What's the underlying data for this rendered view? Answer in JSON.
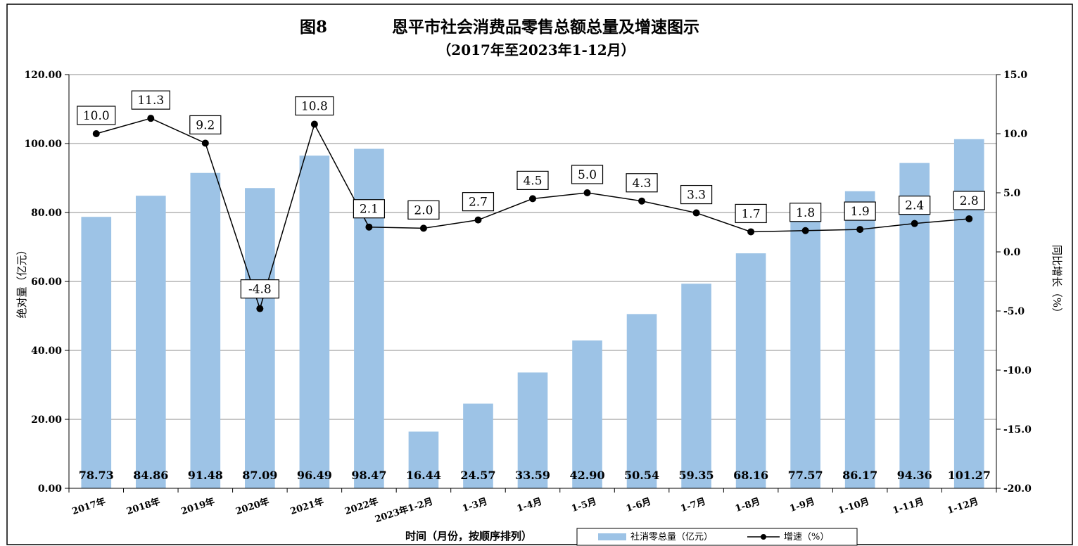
{
  "chart_data": {
    "type": "bar",
    "title": "图8　　　　恩平市社会消费品零售总额总量及增速图示",
    "subtitle": "（2017年至2023年1-12月）",
    "xlabel": "时间（月份，按顺序排列）",
    "ylabel": "绝对量（亿元）",
    "y2label": "同比增长（%）",
    "ylim": [
      0,
      120
    ],
    "y2lim": [
      -20,
      15
    ],
    "y_ticks": [
      "0.00",
      "20.00",
      "40.00",
      "60.00",
      "80.00",
      "100.00",
      "120.00"
    ],
    "y2_ticks": [
      "-20.0",
      "-15.0",
      "-10.0",
      "-5.0",
      "0.0",
      "5.0",
      "10.0",
      "15.0"
    ],
    "categories": [
      "2017年",
      "2018年",
      "2019年",
      "2020年",
      "2021年",
      "2022年",
      "2023年1-2月",
      "1-3月",
      "1-4月",
      "1-5月",
      "1-6月",
      "1-7月",
      "1-8月",
      "1-9月",
      "1-10月",
      "1-11月",
      "1-12月"
    ],
    "series": [
      {
        "name": "社消零总量（亿元）",
        "type": "bar",
        "axis": "left",
        "color": "#9dc3e6",
        "values": [
          78.73,
          84.86,
          91.48,
          87.09,
          96.49,
          98.47,
          16.44,
          24.57,
          33.59,
          42.9,
          50.54,
          59.35,
          68.16,
          77.57,
          86.17,
          94.36,
          101.27
        ],
        "labels": [
          "78.73",
          "84.86",
          "91.48",
          "87.09",
          "96.49",
          "98.47",
          "16.44",
          "24.57",
          "33.59",
          "42.90",
          "50.54",
          "59.35",
          "68.16",
          "77.57",
          "86.17",
          "94.36",
          "101.27"
        ]
      },
      {
        "name": "增速（%）",
        "type": "line",
        "axis": "right",
        "color": "#000000",
        "values": [
          10.0,
          11.3,
          9.2,
          -4.8,
          10.8,
          2.1,
          2.0,
          2.7,
          4.5,
          5.0,
          4.3,
          3.3,
          1.7,
          1.8,
          1.9,
          2.4,
          2.8
        ],
        "labels": [
          "10.0",
          "11.3",
          "9.2",
          "-4.8",
          "10.8",
          "2.1",
          "2.0",
          "2.7",
          "4.5",
          "5.0",
          "4.3",
          "3.3",
          "1.7",
          "1.8",
          "1.9",
          "2.4",
          "2.8"
        ]
      }
    ],
    "grid": true,
    "legend_position": "bottom-right"
  }
}
